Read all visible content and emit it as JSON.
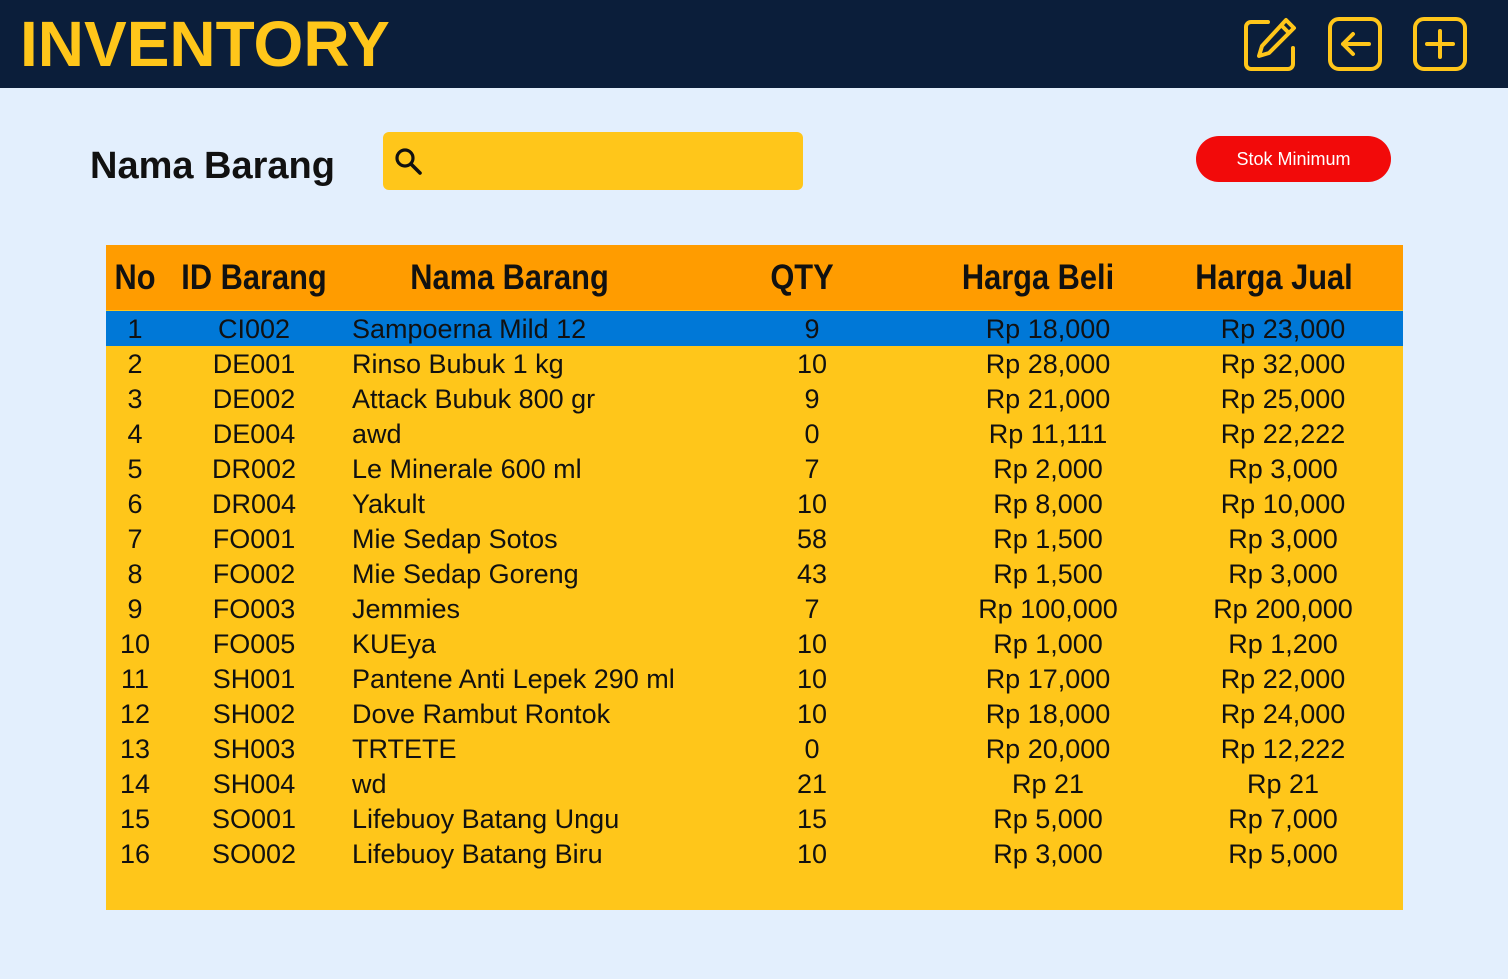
{
  "header": {
    "title": "INVENTORY",
    "icons": [
      "edit-icon",
      "back-icon",
      "add-icon"
    ],
    "bg_color": "#0b1e3a",
    "accent_color": "#ffc61a"
  },
  "search": {
    "label": "Nama Barang",
    "value": "",
    "placeholder": ""
  },
  "stok_button": {
    "label": "Stok Minimum",
    "color": "#f20a0a"
  },
  "table": {
    "columns": [
      "No",
      "ID Barang",
      "Nama Barang",
      "QTY",
      "Harga Beli",
      "Harga Jual"
    ],
    "selected_row": 0,
    "rows": [
      [
        "1",
        "CI002",
        "Sampoerna Mild 12",
        "9",
        "Rp 18,000",
        "Rp 23,000"
      ],
      [
        "2",
        "DE001",
        "Rinso Bubuk 1 kg",
        "10",
        "Rp 28,000",
        "Rp 32,000"
      ],
      [
        "3",
        "DE002",
        "Attack Bubuk 800 gr",
        "9",
        "Rp 21,000",
        "Rp 25,000"
      ],
      [
        "4",
        "DE004",
        "awd",
        "0",
        "Rp 11,111",
        "Rp 22,222"
      ],
      [
        "5",
        "DR002",
        "Le Minerale 600 ml",
        "7",
        "Rp 2,000",
        "Rp 3,000"
      ],
      [
        "6",
        "DR004",
        "Yakult",
        "10",
        "Rp 8,000",
        "Rp 10,000"
      ],
      [
        "7",
        "FO001",
        "Mie Sedap Sotos",
        "58",
        "Rp 1,500",
        "Rp 3,000"
      ],
      [
        "8",
        "FO002",
        "Mie Sedap Goreng",
        "43",
        "Rp 1,500",
        "Rp 3,000"
      ],
      [
        "9",
        "FO003",
        "Jemmies",
        "7",
        "Rp 100,000",
        "Rp 200,000"
      ],
      [
        "10",
        "FO005",
        "KUEya",
        "10",
        "Rp 1,000",
        "Rp 1,200"
      ],
      [
        "11",
        "SH001",
        "Pantene Anti Lepek 290 ml",
        "10",
        "Rp 17,000",
        "Rp 22,000"
      ],
      [
        "12",
        "SH002",
        "Dove Rambut Rontok",
        "10",
        "Rp 18,000",
        "Rp 24,000"
      ],
      [
        "13",
        "SH003",
        "TRTETE",
        "0",
        "Rp 20,000",
        "Rp 12,222"
      ],
      [
        "14",
        "SH004",
        "wd",
        "21",
        "Rp 21",
        "Rp 21"
      ],
      [
        "15",
        "SO001",
        "Lifebuoy Batang Ungu",
        "15",
        "Rp 5,000",
        "Rp 7,000"
      ],
      [
        "16",
        "SO002",
        "Lifebuoy Batang Biru",
        "10",
        "Rp 3,000",
        "Rp 5,000"
      ]
    ]
  }
}
